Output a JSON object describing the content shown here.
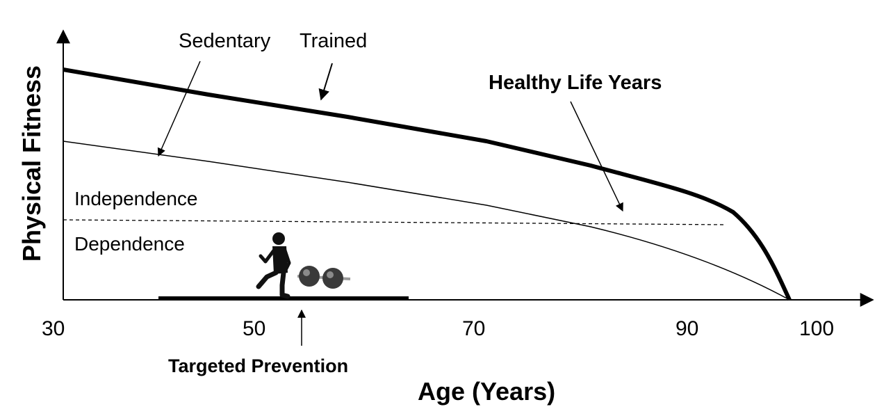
{
  "diagram": {
    "ylabel": "Physical Fitness",
    "xlabel": "Age (Years)",
    "x_ticks": [
      "30",
      "50",
      "70",
      "90",
      "100"
    ],
    "labels": {
      "sedentary": "Sedentary",
      "trained": "Trained",
      "healthy_life_years": "Healthy Life Years",
      "independence": "Independence",
      "dependence": "Dependence",
      "targeted_prevention": "Targeted Prevention"
    },
    "icons": [
      "runner-icon",
      "dumbbell-icon"
    ]
  }
}
